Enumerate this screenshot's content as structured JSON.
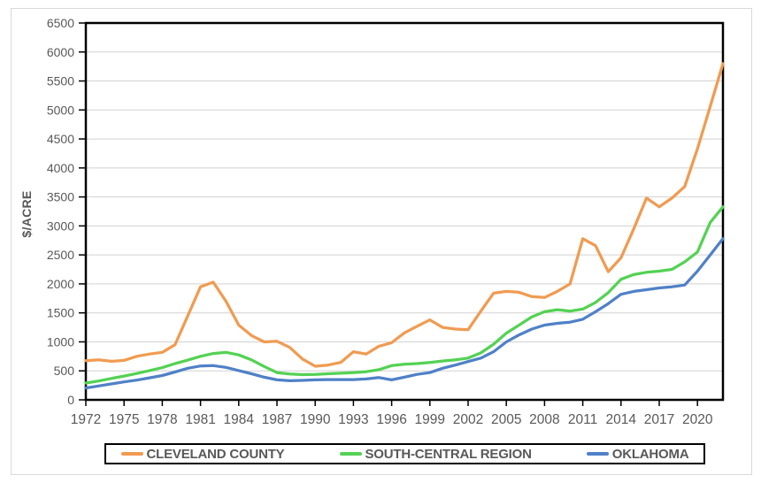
{
  "figure": {
    "background": "#FFFFFF",
    "border_color": "#D9D9D9",
    "axis_color": "#000000",
    "gridline_color": "#D2D2D2",
    "tick_label_color": "#595959"
  },
  "chart_data": {
    "type": "line",
    "title": "",
    "xlabel": "",
    "ylabel": "$/ACRE",
    "ylim": [
      0,
      6500
    ],
    "ytick_step": 500,
    "yticks": [
      0,
      500,
      1000,
      1500,
      2000,
      2500,
      3000,
      3500,
      4000,
      4500,
      5000,
      5500,
      6000,
      6500
    ],
    "xticks": [
      1972,
      1975,
      1978,
      1981,
      1984,
      1987,
      1990,
      1993,
      1996,
      1999,
      2002,
      2005,
      2008,
      2011,
      2014,
      2017,
      2020
    ],
    "grid": "horizontal",
    "legend_position": "bottom",
    "x": [
      1972,
      1973,
      1974,
      1975,
      1976,
      1977,
      1978,
      1979,
      1980,
      1981,
      1982,
      1983,
      1984,
      1985,
      1986,
      1987,
      1988,
      1989,
      1990,
      1991,
      1992,
      1993,
      1994,
      1995,
      1996,
      1997,
      1998,
      1999,
      2000,
      2001,
      2002,
      2003,
      2004,
      2005,
      2006,
      2007,
      2008,
      2009,
      2010,
      2011,
      2012,
      2013,
      2014,
      2015,
      2016,
      2017,
      2018,
      2019,
      2020,
      2021,
      2022
    ],
    "series": [
      {
        "name": "CLEVELAND COUNTY",
        "color": "#F09B51",
        "values": [
          675,
          690,
          665,
          680,
          750,
          790,
          820,
          950,
          1450,
          1950,
          2030,
          1700,
          1290,
          1110,
          1000,
          1010,
          905,
          705,
          580,
          600,
          645,
          830,
          790,
          925,
          985,
          1155,
          1270,
          1380,
          1250,
          1220,
          1210,
          1530,
          1840,
          1870,
          1855,
          1780,
          1765,
          1870,
          2000,
          2780,
          2660,
          2210,
          2450,
          2950,
          3480,
          3330,
          3480,
          3680,
          4330,
          5060,
          5800
        ]
      },
      {
        "name": "SOUTH-CENTRAL REGION",
        "color": "#53D253",
        "values": [
          290,
          325,
          370,
          410,
          455,
          505,
          555,
          625,
          685,
          750,
          800,
          820,
          775,
          690,
          575,
          470,
          445,
          435,
          440,
          450,
          460,
          470,
          485,
          520,
          590,
          615,
          625,
          645,
          670,
          690,
          720,
          810,
          960,
          1150,
          1290,
          1430,
          1520,
          1555,
          1530,
          1565,
          1680,
          1850,
          2080,
          2160,
          2200,
          2220,
          2250,
          2380,
          2550,
          3060,
          3330
        ]
      },
      {
        "name": "OKLAHOMA",
        "color": "#4F81C7",
        "values": [
          205,
          240,
          275,
          310,
          340,
          380,
          420,
          480,
          545,
          585,
          590,
          560,
          505,
          450,
          390,
          345,
          330,
          335,
          345,
          350,
          350,
          350,
          360,
          385,
          345,
          390,
          440,
          470,
          545,
          600,
          660,
          720,
          830,
          1000,
          1120,
          1220,
          1290,
          1320,
          1340,
          1390,
          1520,
          1660,
          1820,
          1870,
          1900,
          1930,
          1950,
          1980,
          2220,
          2500,
          2780
        ]
      }
    ]
  }
}
